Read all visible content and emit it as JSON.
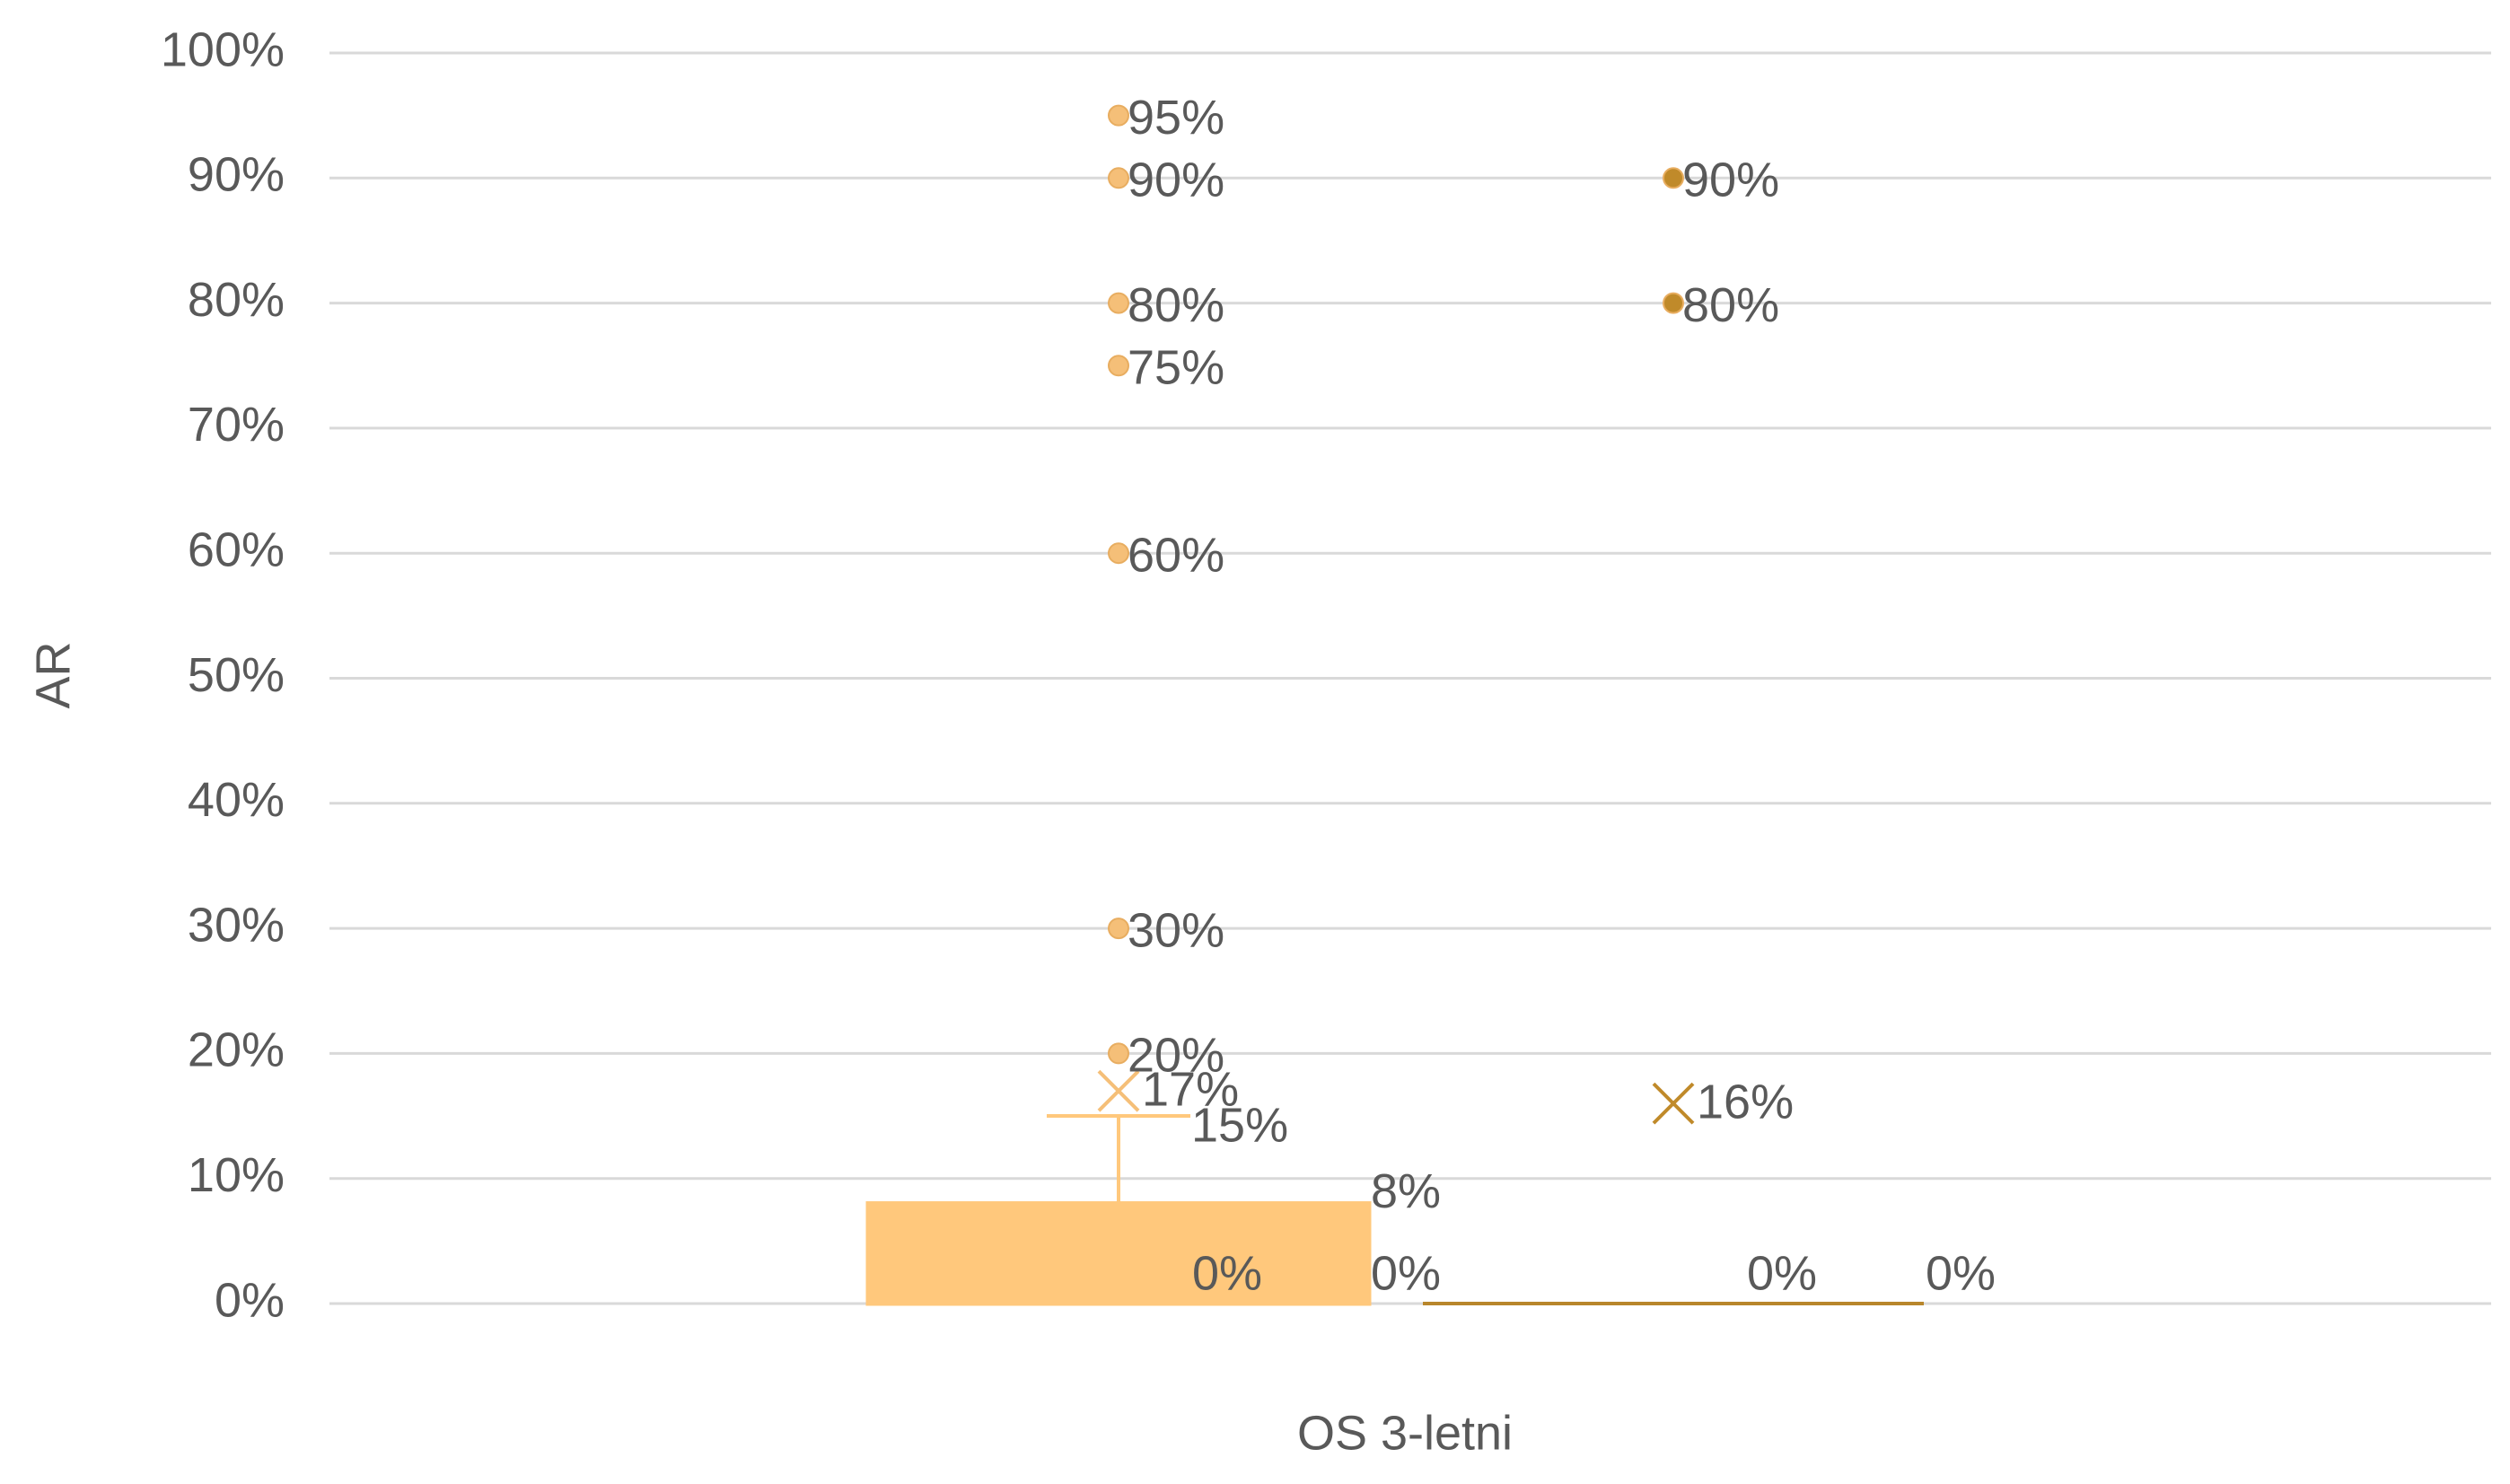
{
  "chart_data": {
    "type": "box",
    "y_label": "AR",
    "categories": [
      "OS 3-letni"
    ],
    "ylim": [
      0,
      100
    ],
    "yticks": [
      {
        "value": 0,
        "label": "0%"
      },
      {
        "value": 10,
        "label": "10%"
      },
      {
        "value": 20,
        "label": "20%"
      },
      {
        "value": 30,
        "label": "30%"
      },
      {
        "value": 40,
        "label": "40%"
      },
      {
        "value": 50,
        "label": "50%"
      },
      {
        "value": 60,
        "label": "60%"
      },
      {
        "value": 70,
        "label": "70%"
      },
      {
        "value": 80,
        "label": "80%"
      },
      {
        "value": 90,
        "label": "90%"
      },
      {
        "value": 100,
        "label": "100%"
      }
    ],
    "grid": true,
    "series": [
      {
        "color": "#ffc87c",
        "point_color": "#f5bf78",
        "min": 0,
        "q1": 0,
        "median": 0,
        "q3": 8,
        "max": 15,
        "mean": 17,
        "value_labels": {
          "q1": "0%",
          "median": "0%",
          "q3": "8%",
          "max": "15%",
          "mean": "17%"
        },
        "outliers": [
          95,
          90,
          80,
          75,
          60,
          30,
          20
        ],
        "outlier_labels": [
          "95%",
          "90%",
          "80%",
          "75%",
          "60%",
          "30%",
          "20%"
        ]
      },
      {
        "color": "#b8862b",
        "point_color": "#c08a2a",
        "min": 0,
        "q1": 0,
        "median": 0,
        "q3": 0,
        "max": 0,
        "mean": 16,
        "value_labels": {
          "median": "0%",
          "q3": "0%",
          "mean": "16%"
        },
        "outliers": [
          90,
          80
        ],
        "outlier_labels": [
          "90%",
          "80%"
        ]
      }
    ]
  }
}
